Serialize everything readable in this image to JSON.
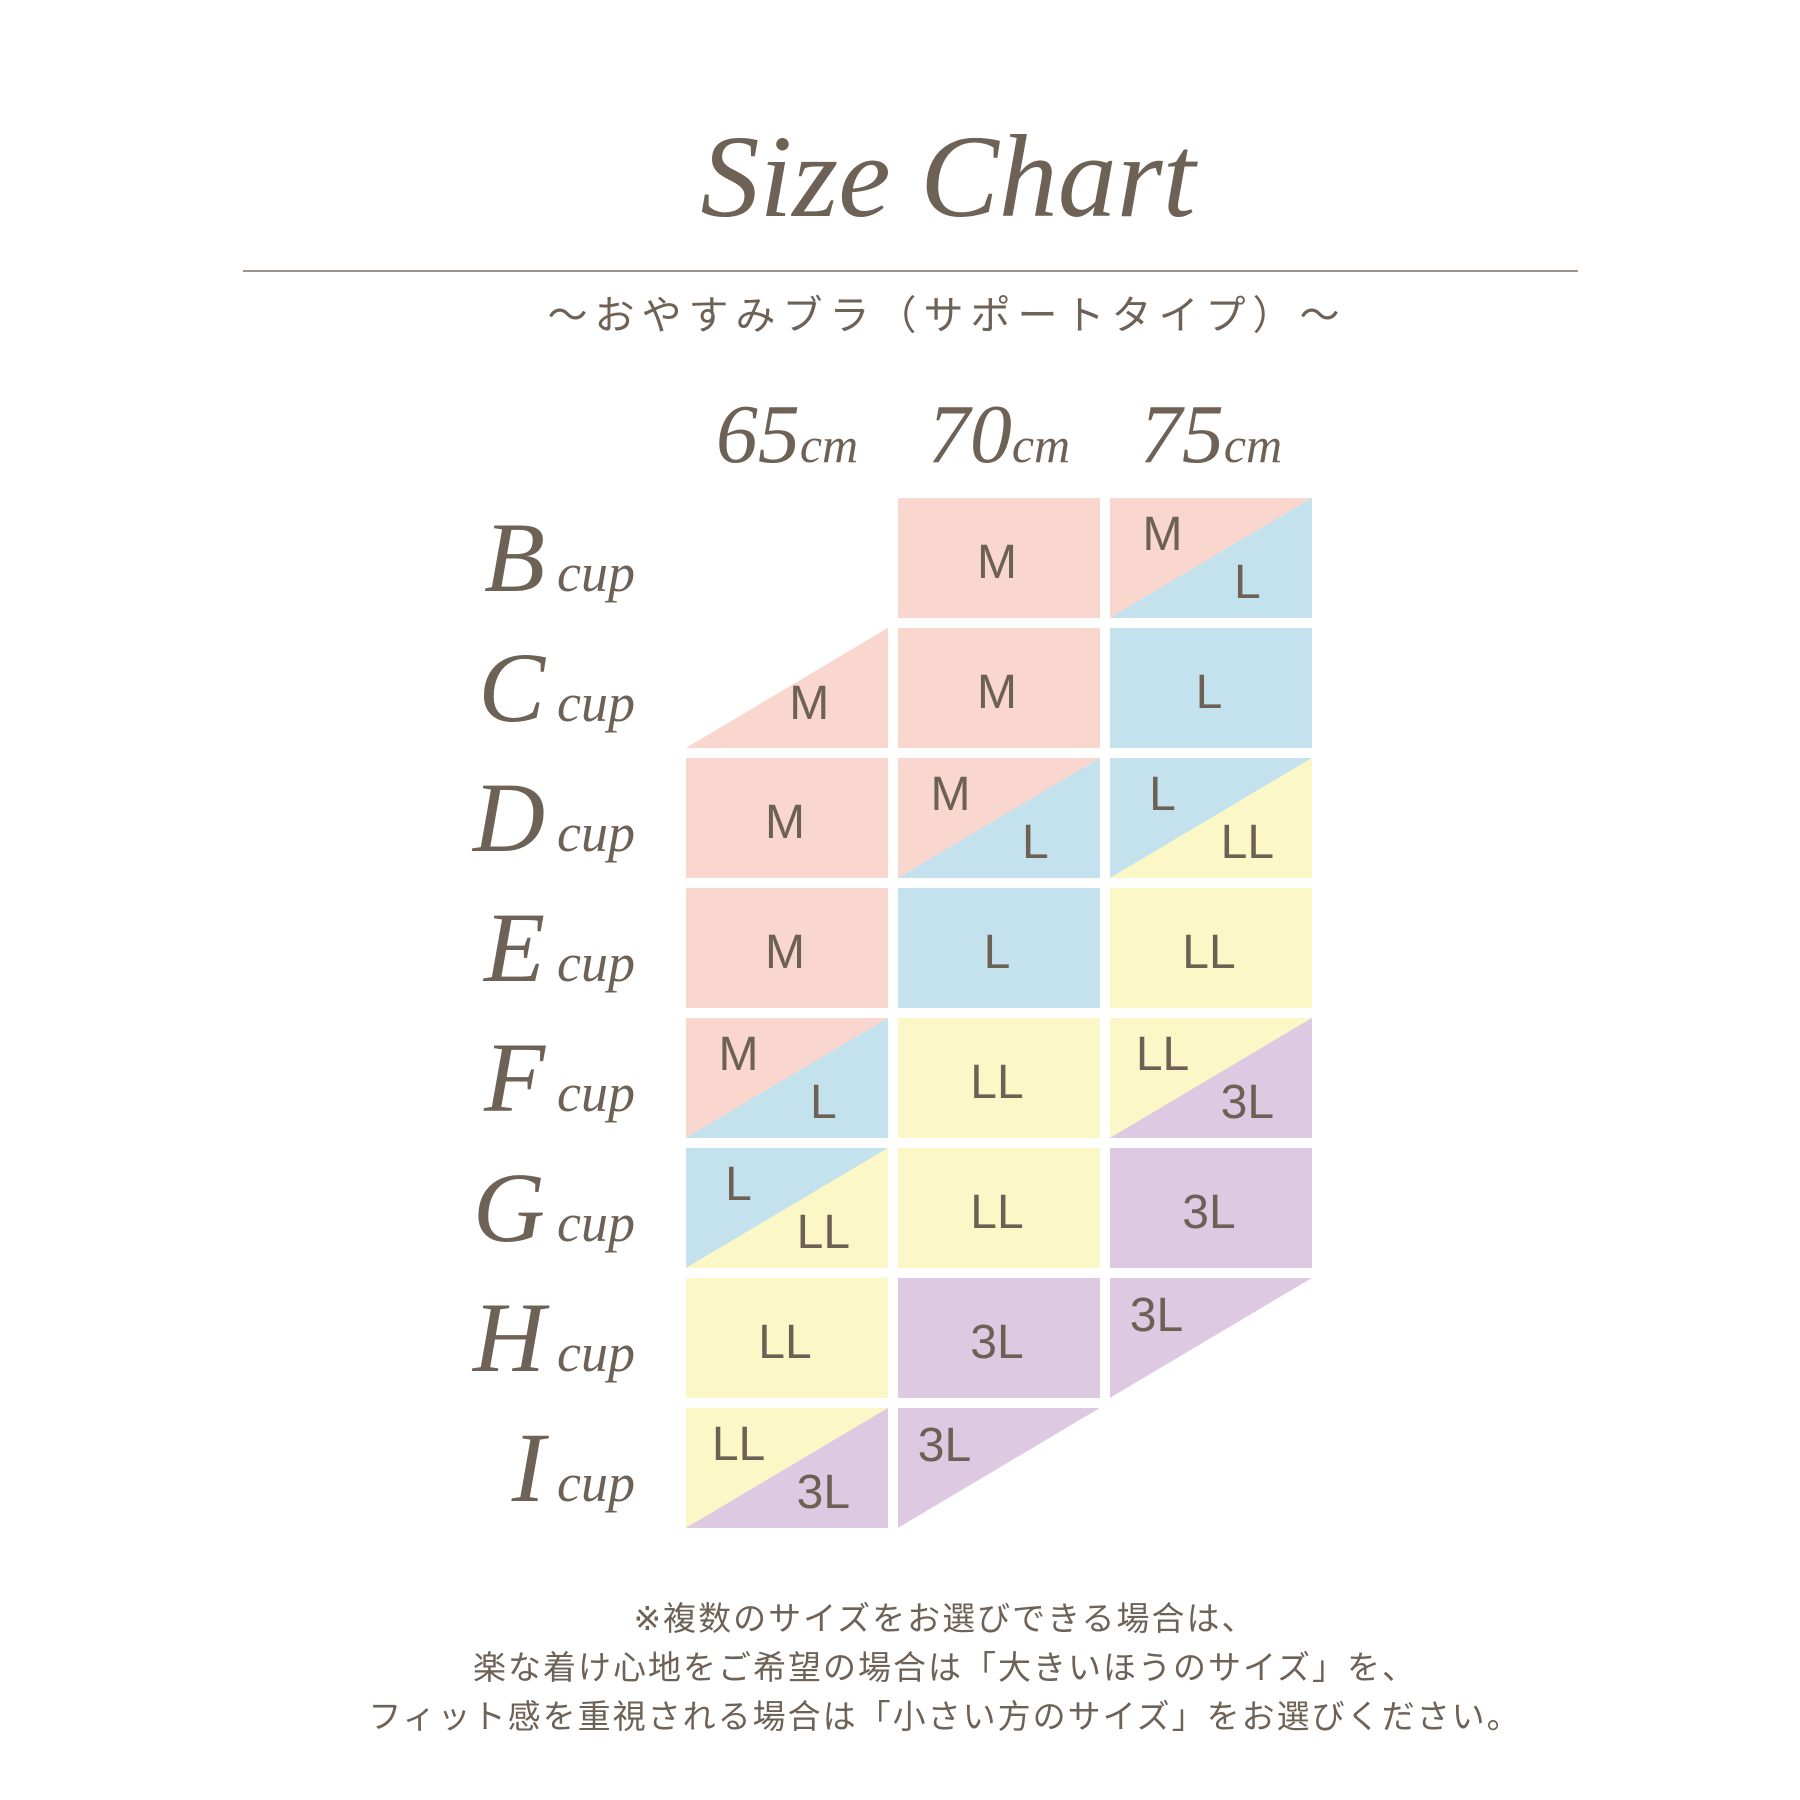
{
  "title": "Size Chart",
  "subtitle": "～おやすみブラ（サポートタイプ）～",
  "chart_data": {
    "type": "table",
    "title": "Size Chart",
    "subtitle": "～おやすみブラ（サポートタイプ）～",
    "columns": [
      {
        "value": "65",
        "unit": "cm"
      },
      {
        "value": "70",
        "unit": "cm"
      },
      {
        "value": "75",
        "unit": "cm"
      }
    ],
    "rows": [
      {
        "letter": "B",
        "suffix": "cup"
      },
      {
        "letter": "C",
        "suffix": "cup"
      },
      {
        "letter": "D",
        "suffix": "cup"
      },
      {
        "letter": "E",
        "suffix": "cup"
      },
      {
        "letter": "F",
        "suffix": "cup"
      },
      {
        "letter": "G",
        "suffix": "cup"
      },
      {
        "letter": "H",
        "suffix": "cup"
      },
      {
        "letter": "I",
        "suffix": "cup"
      }
    ],
    "size_colors": {
      "M": "#f9d7cf",
      "L": "#c3e2ee",
      "LL": "#fbf7c6",
      "3L": "#ddc9e2"
    },
    "cells": [
      [
        {
          "kind": "empty",
          "sizes": []
        },
        {
          "kind": "full",
          "sizes": [
            "M"
          ]
        },
        {
          "kind": "split",
          "sizes": [
            "M",
            "L"
          ]
        }
      ],
      [
        {
          "kind": "half_br",
          "sizes": [
            "M"
          ]
        },
        {
          "kind": "full",
          "sizes": [
            "M"
          ]
        },
        {
          "kind": "full",
          "sizes": [
            "L"
          ]
        }
      ],
      [
        {
          "kind": "full",
          "sizes": [
            "M"
          ]
        },
        {
          "kind": "split",
          "sizes": [
            "M",
            "L"
          ]
        },
        {
          "kind": "split",
          "sizes": [
            "L",
            "LL"
          ]
        }
      ],
      [
        {
          "kind": "full",
          "sizes": [
            "M"
          ]
        },
        {
          "kind": "full",
          "sizes": [
            "L"
          ]
        },
        {
          "kind": "full",
          "sizes": [
            "LL"
          ]
        }
      ],
      [
        {
          "kind": "split",
          "sizes": [
            "M",
            "L"
          ]
        },
        {
          "kind": "full",
          "sizes": [
            "LL"
          ]
        },
        {
          "kind": "split",
          "sizes": [
            "LL",
            "3L"
          ]
        }
      ],
      [
        {
          "kind": "split",
          "sizes": [
            "L",
            "LL"
          ]
        },
        {
          "kind": "full",
          "sizes": [
            "LL"
          ]
        },
        {
          "kind": "full",
          "sizes": [
            "3L"
          ]
        }
      ],
      [
        {
          "kind": "full",
          "sizes": [
            "LL"
          ]
        },
        {
          "kind": "full",
          "sizes": [
            "3L"
          ]
        },
        {
          "kind": "half_tl",
          "sizes": [
            "3L"
          ]
        }
      ],
      [
        {
          "kind": "split",
          "sizes": [
            "LL",
            "3L"
          ]
        },
        {
          "kind": "half_tl",
          "sizes": [
            "3L"
          ]
        },
        {
          "kind": "empty",
          "sizes": []
        }
      ]
    ]
  },
  "footnote": {
    "lines": [
      "※複数のサイズをお選びできる場合は、",
      "楽な着け心地をご希望の場合は「大きいほうのサイズ」を、",
      "フィット感を重視される場合は「小さい方のサイズ」をお選びください。"
    ]
  },
  "colors": {
    "text": "#6e6156",
    "divider": "#9c948d",
    "background": "#ffffff"
  }
}
